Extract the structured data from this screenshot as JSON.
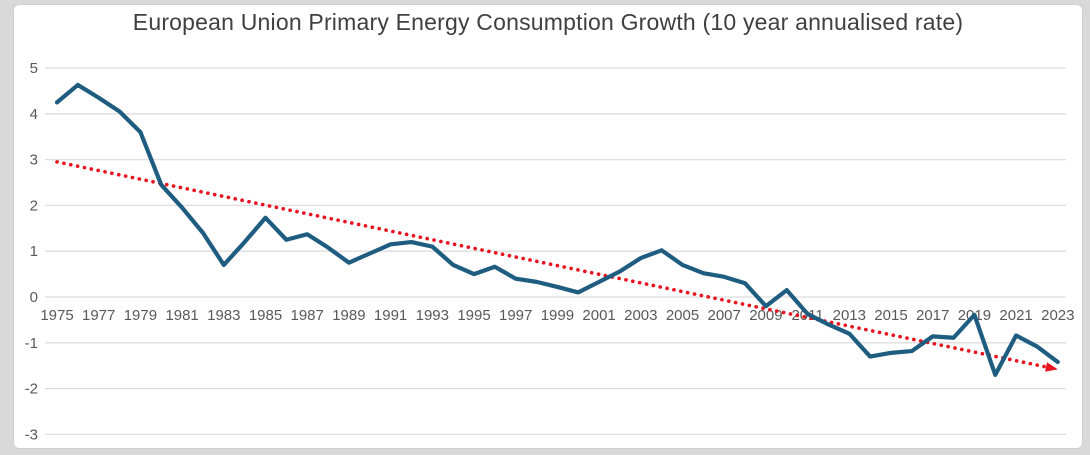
{
  "chart_data": {
    "type": "line",
    "title": "European Union Primary Energy Consumption Growth (10 year annualised rate)",
    "xlabel": "",
    "ylabel": "",
    "ylim": [
      -3,
      5
    ],
    "grid": "horizontal",
    "legend": "none",
    "x_start": 1975,
    "x_end": 2023,
    "years": [
      1975,
      1976,
      1977,
      1978,
      1979,
      1980,
      1981,
      1982,
      1983,
      1984,
      1985,
      1986,
      1987,
      1988,
      1989,
      1990,
      1991,
      1992,
      1993,
      1994,
      1995,
      1996,
      1997,
      1998,
      1999,
      2000,
      2001,
      2002,
      2003,
      2004,
      2005,
      2006,
      2007,
      2008,
      2009,
      2010,
      2011,
      2012,
      2013,
      2014,
      2015,
      2016,
      2017,
      2018,
      2019,
      2020,
      2021,
      2022,
      2023
    ],
    "values": [
      4.25,
      4.63,
      4.35,
      4.05,
      3.6,
      2.45,
      1.95,
      1.4,
      0.7,
      1.2,
      1.73,
      1.25,
      1.37,
      1.08,
      0.75,
      0.95,
      1.15,
      1.2,
      1.1,
      0.7,
      0.5,
      0.66,
      0.4,
      0.33,
      0.22,
      0.1,
      0.33,
      0.56,
      0.85,
      1.02,
      0.7,
      0.52,
      0.44,
      0.3,
      -0.2,
      0.15,
      -0.37,
      -0.6,
      -0.8,
      -1.3,
      -1.22,
      -1.18,
      -0.86,
      -0.89,
      -0.39,
      -1.7,
      -0.84,
      -1.08,
      -1.42
    ],
    "y_tick_labels": [
      "5",
      "4",
      "3",
      "2",
      "1",
      "0",
      "-1",
      "-2",
      "-3"
    ],
    "x_tick_labels": [
      "1975",
      "1977",
      "1979",
      "1981",
      "1983",
      "1985",
      "1987",
      "1989",
      "1991",
      "1993",
      "1995",
      "1997",
      "1999",
      "2001",
      "2003",
      "2005",
      "2007",
      "2009",
      "2011",
      "2013",
      "2015",
      "2017",
      "2019",
      "2021",
      "2023"
    ],
    "trend": {
      "style": "dotted-arrow",
      "start_year": 1975,
      "start_value": 2.95,
      "end_year": 2023,
      "end_value": -1.58
    },
    "colors": {
      "line": "#1e5c80",
      "trend": "#e8131f",
      "gridline": "#dedede",
      "axis_text": "#595959",
      "title_text": "#404040",
      "frame": "#d9d9d9",
      "panel": "#ffffff"
    }
  }
}
